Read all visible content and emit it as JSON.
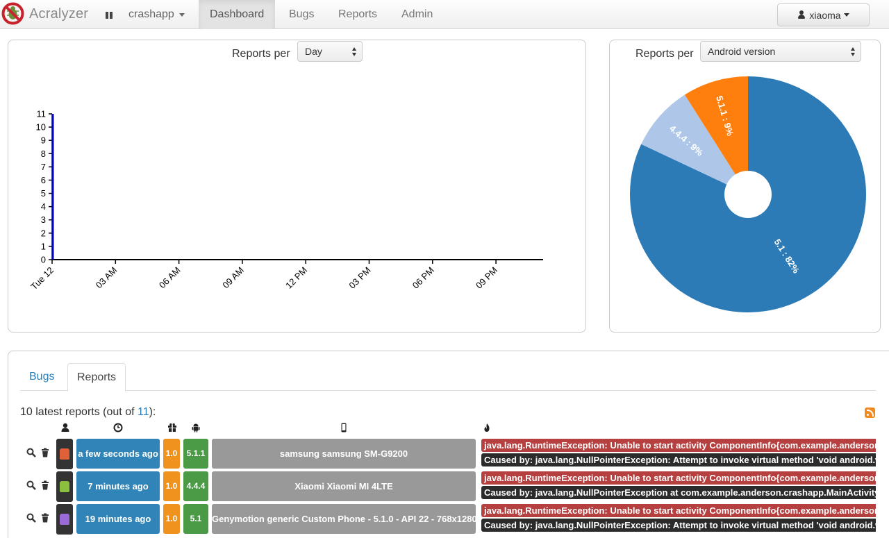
{
  "navbar": {
    "brand": "Acralyzer",
    "app_name": "crashapp",
    "items": [
      {
        "label": "Dashboard",
        "active": true
      },
      {
        "label": "Bugs",
        "active": false
      },
      {
        "label": "Reports",
        "active": false
      },
      {
        "label": "Admin",
        "active": false
      }
    ],
    "user": "xiaoma"
  },
  "timeline_panel": {
    "label": "Reports per",
    "select_value": "Day"
  },
  "pie_panel": {
    "label": "Reports per",
    "select_value": "Android version"
  },
  "chart_data": [
    {
      "type": "line",
      "title": "",
      "xlabel": "",
      "ylabel": "",
      "x_ticks": [
        "Tue 12",
        "03 AM",
        "06 AM",
        "09 AM",
        "12 PM",
        "03 PM",
        "06 PM",
        "09 PM"
      ],
      "y_ticks": [
        0,
        1,
        2,
        3,
        4,
        5,
        6,
        7,
        8,
        9,
        10,
        11
      ],
      "ylim": [
        0,
        11
      ],
      "series": [
        {
          "x": [
            "Tue 12"
          ],
          "values": [
            11
          ]
        }
      ],
      "grid": false,
      "line_color": "#0000cc"
    },
    {
      "type": "pie",
      "categories": [
        "5.1",
        "4.4.4",
        "5.1.1"
      ],
      "values": [
        82,
        9,
        9
      ],
      "slice_labels": [
        "5.1 : 82%",
        "4.4.4 : 9%",
        "5.1.1 : 9%"
      ],
      "colors": [
        "#2d7bb6",
        "#aec7e8",
        "#ff7f0e"
      ],
      "donut": true
    }
  ],
  "tabs": [
    {
      "label": "Bugs",
      "active": false
    },
    {
      "label": "Reports",
      "active": true
    }
  ],
  "latest": {
    "prefix": "10 latest reports (out of ",
    "total": "11",
    "suffix": "):"
  },
  "columns": [
    "user-icon",
    "clock-icon",
    "gift-icon",
    "android-icon",
    "phone-icon",
    "fire-icon"
  ],
  "rows": [
    {
      "avatar_color": "#e0603a",
      "time": "a few seconds ago",
      "app_version": "1.0",
      "android_version": "5.1.1",
      "device": "samsung samsung SM-G9200",
      "exception": "java.lang.RuntimeException: Unable to start activity ComponentInfo{com.example.anderson.c",
      "cause": "Caused by: java.lang.NullPointerException: Attempt to invoke virtual method 'void android.wi"
    },
    {
      "avatar_color": "#8bbf3e",
      "time": "7 minutes ago",
      "app_version": "1.0",
      "android_version": "4.4.4",
      "device": "Xiaomi Xiaomi MI 4LTE",
      "exception": "java.lang.RuntimeException: Unable to start activity ComponentInfo{com.example.anderson.c",
      "cause": "Caused by: java.lang.NullPointerException at com.example.anderson.crashapp.MainActivity.c"
    },
    {
      "avatar_color": "#9a6ad6",
      "time": "19 minutes ago",
      "app_version": "1.0",
      "android_version": "5.1",
      "device": "Genymotion generic Custom Phone - 5.1.0 - API 22 - 768x1280",
      "exception": "java.lang.RuntimeException: Unable to start activity ComponentInfo{com.example.anderson.c",
      "cause": "Caused by: java.lang.NullPointerException: Attempt to invoke virtual method 'void android.wi"
    }
  ]
}
